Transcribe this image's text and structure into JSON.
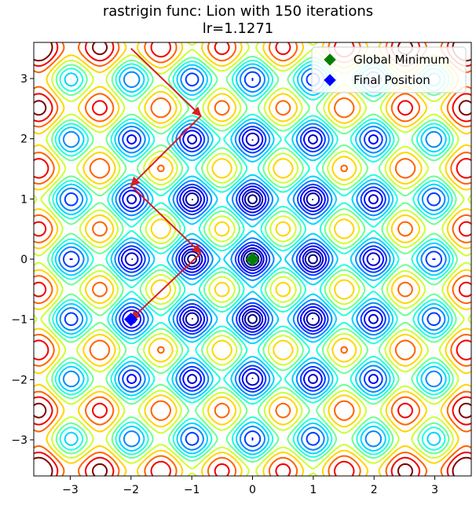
{
  "chart_data": {
    "type": "contour",
    "title": "rastrigin func: Lion with 150 iterations",
    "subtitle": "lr=1.1271",
    "function": "rastrigin",
    "xlim": [
      -3.6,
      3.6
    ],
    "ylim": [
      -3.6,
      3.6
    ],
    "x_ticks": [
      -3,
      -2,
      -1,
      0,
      1,
      2,
      3
    ],
    "y_ticks": [
      -3,
      -2,
      -1,
      0,
      1,
      2,
      3
    ],
    "x_tick_labels": [
      "−3",
      "−2",
      "−1",
      "0",
      "1",
      "2",
      "3"
    ],
    "y_tick_labels": [
      "−3",
      "−2",
      "−1",
      "0",
      "1",
      "2",
      "3"
    ],
    "colormap": "jet",
    "contour_levels": [
      2,
      4,
      6,
      9,
      12,
      16,
      20,
      24,
      28,
      33,
      38,
      44,
      50,
      56
    ],
    "grid": false,
    "legend": {
      "placement": "upper right",
      "entries": [
        {
          "label": "Global Minimum",
          "color": "#008000",
          "marker": "diamond"
        },
        {
          "label": "Final Position",
          "color": "#0000ff",
          "marker": "diamond"
        }
      ]
    },
    "global_minimum": {
      "x": 0,
      "y": 0,
      "color": "#008000"
    },
    "final_position": {
      "x": -2.0,
      "y": -1.0,
      "color": "#0000ff"
    },
    "path": {
      "color": "#d62020",
      "points": [
        {
          "x": -2.0,
          "y": 3.5
        },
        {
          "x": -0.85,
          "y": 2.38
        },
        {
          "x": -2.0,
          "y": 1.22
        },
        {
          "x": -0.85,
          "y": 0.1
        },
        {
          "x": -2.0,
          "y": -1.0
        }
      ]
    }
  }
}
